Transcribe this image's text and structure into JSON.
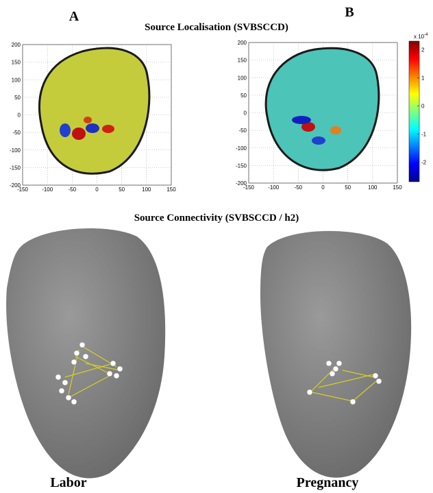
{
  "header": {
    "label_a": "A",
    "label_b": "B",
    "title": "Source Localisation (SVBSCCD)"
  },
  "panels": [
    {
      "xlim": [
        -150,
        150
      ],
      "ylim": [
        -200,
        200
      ],
      "xticks": [
        -150,
        -100,
        -50,
        0,
        50,
        100,
        150
      ],
      "yticks": [
        -200,
        -150,
        -100,
        -50,
        0,
        50,
        100,
        150,
        200
      ]
    },
    {
      "xlim": [
        -150,
        150
      ],
      "ylim": [
        -200,
        200
      ],
      "xticks": [
        -150,
        -100,
        -50,
        0,
        50,
        100,
        150
      ],
      "yticks": [
        -200,
        -150,
        -100,
        -50,
        0,
        50,
        100,
        150,
        200
      ]
    }
  ],
  "colorbar": {
    "exponent_base": "x 10",
    "exponent": "-4",
    "lim": [
      -2.7,
      2.3
    ],
    "ticks": [
      -2,
      -1,
      0,
      1,
      2
    ]
  },
  "connectivity": {
    "title": "Source Connectivity (SVBSCCD / h2)",
    "labels": [
      "Labor",
      "Pregnancy"
    ]
  }
}
